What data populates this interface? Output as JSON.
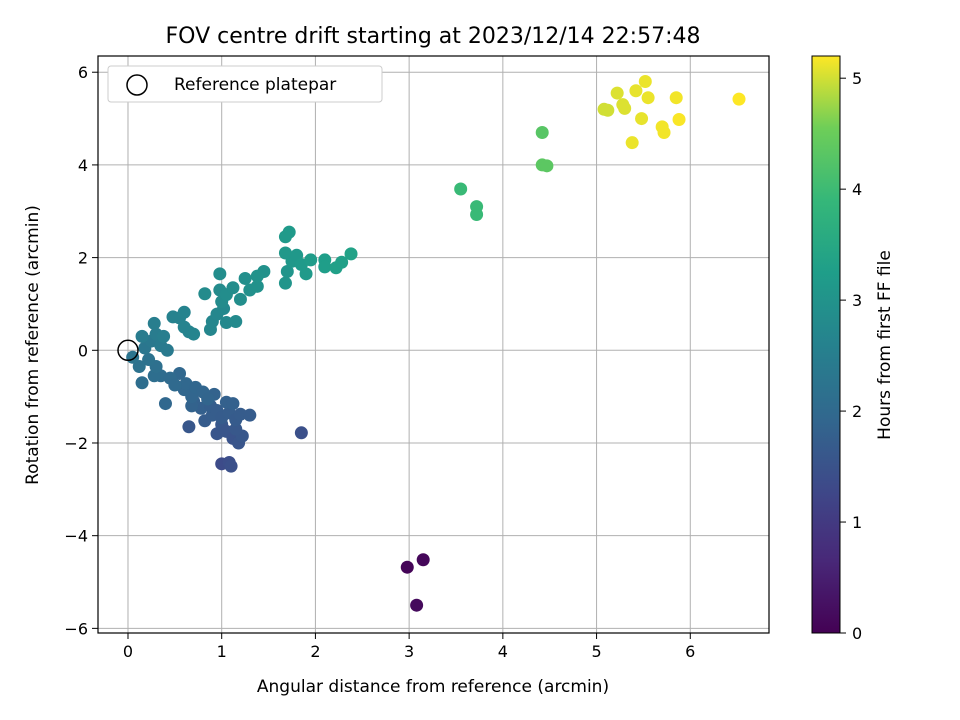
{
  "chart_data": {
    "type": "scatter",
    "title": "FOV centre drift starting at 2023/12/14 22:57:48",
    "xlabel": "Angular distance from reference (arcmin)",
    "ylabel": "Rotation from reference (arcmin)",
    "xlim": [
      -0.32,
      6.84
    ],
    "ylim": [
      -6.1,
      6.35
    ],
    "xticks": [
      0,
      1,
      2,
      3,
      4,
      5,
      6
    ],
    "yticks": [
      -6,
      -4,
      -2,
      0,
      2,
      4,
      6
    ],
    "xtick_labels": [
      "0",
      "1",
      "2",
      "3",
      "4",
      "5",
      "6"
    ],
    "ytick_labels": [
      "−6",
      "−4",
      "−2",
      "0",
      "2",
      "4",
      "6"
    ],
    "grid": true,
    "legend": {
      "placement": "top-left",
      "entries": [
        "Reference platepar"
      ]
    },
    "reference_point": {
      "x": 0,
      "y": 0
    },
    "colorbar": {
      "label": "Hours from first FF file",
      "colormap": "viridis",
      "range": [
        0,
        5.2
      ],
      "ticks": [
        0,
        1,
        2,
        3,
        4,
        5
      ],
      "tick_labels": [
        "0",
        "1",
        "2",
        "3",
        "4",
        "5"
      ]
    },
    "points": [
      [
        2.98,
        -4.68,
        0.05
      ],
      [
        3.15,
        -4.52,
        0.1
      ],
      [
        3.08,
        -5.5,
        0.15
      ],
      [
        1.85,
        -1.78,
        1.45
      ],
      [
        1.0,
        -2.45,
        1.35
      ],
      [
        1.08,
        -2.42,
        1.4
      ],
      [
        1.1,
        -2.5,
        1.45
      ],
      [
        0.65,
        -1.65,
        1.6
      ],
      [
        0.95,
        -1.8,
        1.55
      ],
      [
        1.0,
        -1.6,
        1.6
      ],
      [
        1.05,
        -1.75,
        1.55
      ],
      [
        1.12,
        -1.9,
        1.5
      ],
      [
        1.18,
        -2.0,
        1.55
      ],
      [
        1.22,
        -1.85,
        1.6
      ],
      [
        1.15,
        -1.7,
        1.62
      ],
      [
        0.82,
        -1.52,
        1.7
      ],
      [
        0.9,
        -1.4,
        1.72
      ],
      [
        0.78,
        -1.25,
        1.78
      ],
      [
        0.7,
        -1.1,
        1.8
      ],
      [
        0.88,
        -1.2,
        1.75
      ],
      [
        0.95,
        -1.3,
        1.72
      ],
      [
        1.0,
        -1.45,
        1.7
      ],
      [
        1.08,
        -1.35,
        1.72
      ],
      [
        1.15,
        -1.5,
        1.68
      ],
      [
        1.2,
        -1.38,
        1.7
      ],
      [
        1.3,
        -1.4,
        1.7
      ],
      [
        1.05,
        -1.12,
        1.8
      ],
      [
        1.12,
        -1.15,
        1.8
      ],
      [
        0.92,
        -0.95,
        1.85
      ],
      [
        0.68,
        -1.2,
        1.85
      ],
      [
        0.68,
        -1.0,
        1.9
      ],
      [
        0.6,
        -0.85,
        1.92
      ],
      [
        0.55,
        -0.5,
        1.95
      ],
      [
        0.62,
        -0.72,
        1.95
      ],
      [
        0.72,
        -0.8,
        1.93
      ],
      [
        0.8,
        -0.9,
        1.9
      ],
      [
        0.85,
        -1.05,
        1.88
      ],
      [
        0.4,
        -1.15,
        1.95
      ],
      [
        0.35,
        -0.55,
        2.05
      ],
      [
        0.45,
        -0.6,
        2.02
      ],
      [
        0.5,
        -0.75,
        2.0
      ],
      [
        0.28,
        -0.55,
        2.1
      ],
      [
        0.15,
        -0.7,
        2.1
      ],
      [
        0.3,
        -0.35,
        2.15
      ],
      [
        0.22,
        -0.2,
        2.2
      ],
      [
        0.12,
        -0.35,
        2.2
      ],
      [
        0.05,
        -0.15,
        2.25
      ],
      [
        0.18,
        0.05,
        2.3
      ],
      [
        0.25,
        0.2,
        2.35
      ],
      [
        0.35,
        0.1,
        2.4
      ],
      [
        0.42,
        0.0,
        2.4
      ],
      [
        0.3,
        0.35,
        2.45
      ],
      [
        0.15,
        0.3,
        2.45
      ],
      [
        0.28,
        0.58,
        2.5
      ],
      [
        0.38,
        0.3,
        2.5
      ],
      [
        0.48,
        0.72,
        2.6
      ],
      [
        0.55,
        0.7,
        2.6
      ],
      [
        0.6,
        0.82,
        2.62
      ],
      [
        0.6,
        0.5,
        2.62
      ],
      [
        0.65,
        0.4,
        2.62
      ],
      [
        0.7,
        0.35,
        2.65
      ],
      [
        0.88,
        0.45,
        2.7
      ],
      [
        0.9,
        0.62,
        2.7
      ],
      [
        0.95,
        0.78,
        2.72
      ],
      [
        1.02,
        0.9,
        2.75
      ],
      [
        1.05,
        0.6,
        2.75
      ],
      [
        1.15,
        0.62,
        2.78
      ],
      [
        1.0,
        1.05,
        2.8
      ],
      [
        0.82,
        1.22,
        2.8
      ],
      [
        0.98,
        1.3,
        2.82
      ],
      [
        1.05,
        1.2,
        2.85
      ],
      [
        1.12,
        1.35,
        2.85
      ],
      [
        1.2,
        1.1,
        2.88
      ],
      [
        1.25,
        1.55,
        2.9
      ],
      [
        1.3,
        1.3,
        2.92
      ],
      [
        1.38,
        1.38,
        2.95
      ],
      [
        1.45,
        1.7,
        2.95
      ],
      [
        1.38,
        1.6,
        2.98
      ],
      [
        0.98,
        1.65,
        2.85
      ],
      [
        1.68,
        1.45,
        3.05
      ],
      [
        1.7,
        1.7,
        3.05
      ],
      [
        1.75,
        1.92,
        3.1
      ],
      [
        1.68,
        2.1,
        3.1
      ],
      [
        1.8,
        2.05,
        3.12
      ],
      [
        1.85,
        1.85,
        3.15
      ],
      [
        1.9,
        1.65,
        3.15
      ],
      [
        1.72,
        2.55,
        3.15
      ],
      [
        1.68,
        2.45,
        3.15
      ],
      [
        1.95,
        1.95,
        3.2
      ],
      [
        2.1,
        1.95,
        3.25
      ],
      [
        2.1,
        1.8,
        3.25
      ],
      [
        2.22,
        1.78,
        3.3
      ],
      [
        2.28,
        1.9,
        3.3
      ],
      [
        2.38,
        2.08,
        3.35
      ],
      [
        3.55,
        3.48,
        3.95
      ],
      [
        3.72,
        3.1,
        3.95
      ],
      [
        3.72,
        2.93,
        3.95
      ],
      [
        4.42,
        4.7,
        4.3
      ],
      [
        4.42,
        4.0,
        4.35
      ],
      [
        4.47,
        3.98,
        4.35
      ],
      [
        5.12,
        5.18,
        5.0
      ],
      [
        5.22,
        5.55,
        5.05
      ],
      [
        5.28,
        5.3,
        5.05
      ],
      [
        5.3,
        5.22,
        5.05
      ],
      [
        5.42,
        5.6,
        5.1
      ],
      [
        5.48,
        5.0,
        5.1
      ],
      [
        5.52,
        5.8,
        5.12
      ],
      [
        5.55,
        5.45,
        5.12
      ],
      [
        5.38,
        4.48,
        5.12
      ],
      [
        5.7,
        4.82,
        5.15
      ],
      [
        5.72,
        4.7,
        5.15
      ],
      [
        5.85,
        5.45,
        5.15
      ],
      [
        5.88,
        4.98,
        5.18
      ],
      [
        6.52,
        5.42,
        5.2
      ],
      [
        5.08,
        5.2,
        5.0
      ]
    ]
  }
}
